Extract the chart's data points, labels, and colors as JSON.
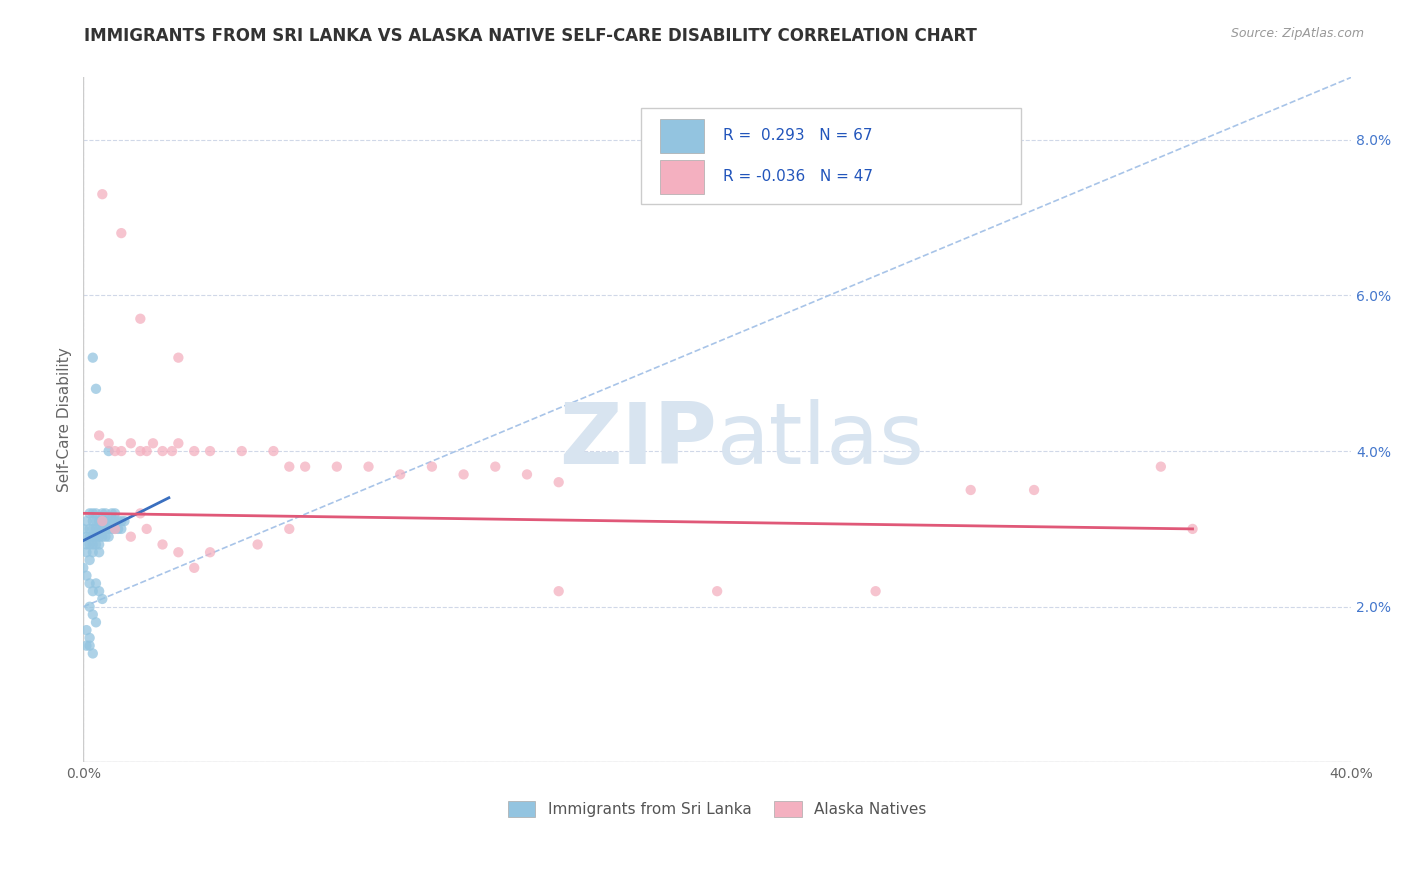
{
  "title": "IMMIGRANTS FROM SRI LANKA VS ALASKA NATIVE SELF-CARE DISABILITY CORRELATION CHART",
  "source": "Source: ZipAtlas.com",
  "ylabel": "Self-Care Disability",
  "xlim": [
    0.0,
    0.4
  ],
  "ylim": [
    0.0,
    0.088
  ],
  "xticks": [
    0.0,
    0.4
  ],
  "yticks": [
    0.0,
    0.02,
    0.04,
    0.06,
    0.08
  ],
  "ytick_labels": [
    "",
    "2.0%",
    "4.0%",
    "6.0%",
    "8.0%"
  ],
  "xtick_labels": [
    "0.0%",
    "40.0%"
  ],
  "legend_blue_label": "Immigrants from Sri Lanka",
  "legend_pink_label": "Alaska Natives",
  "R_blue": 0.293,
  "N_blue": 67,
  "R_pink": -0.036,
  "N_pink": 47,
  "blue_color": "#93c4e0",
  "pink_color": "#f4b0c0",
  "blue_line_color": "#3a6fbf",
  "pink_line_color": "#e05878",
  "diag_line_color": "#a8c4e8",
  "watermark_color": "#d8e4f0",
  "background_color": "#ffffff",
  "grid_color": "#d0d8e8",
  "blue_scatter": [
    [
      0.0,
      0.03
    ],
    [
      0.001,
      0.029
    ],
    [
      0.001,
      0.028
    ],
    [
      0.001,
      0.031
    ],
    [
      0.001,
      0.027
    ],
    [
      0.002,
      0.03
    ],
    [
      0.002,
      0.032
    ],
    [
      0.002,
      0.028
    ],
    [
      0.002,
      0.026
    ],
    [
      0.002,
      0.029
    ],
    [
      0.003,
      0.031
    ],
    [
      0.003,
      0.029
    ],
    [
      0.003,
      0.028
    ],
    [
      0.003,
      0.032
    ],
    [
      0.003,
      0.03
    ],
    [
      0.003,
      0.027
    ],
    [
      0.004,
      0.031
    ],
    [
      0.004,
      0.03
    ],
    [
      0.004,
      0.029
    ],
    [
      0.004,
      0.028
    ],
    [
      0.004,
      0.032
    ],
    [
      0.005,
      0.031
    ],
    [
      0.005,
      0.03
    ],
    [
      0.005,
      0.029
    ],
    [
      0.005,
      0.028
    ],
    [
      0.005,
      0.027
    ],
    [
      0.006,
      0.031
    ],
    [
      0.006,
      0.03
    ],
    [
      0.006,
      0.032
    ],
    [
      0.006,
      0.029
    ],
    [
      0.007,
      0.03
    ],
    [
      0.007,
      0.031
    ],
    [
      0.007,
      0.029
    ],
    [
      0.007,
      0.032
    ],
    [
      0.008,
      0.031
    ],
    [
      0.008,
      0.03
    ],
    [
      0.008,
      0.029
    ],
    [
      0.009,
      0.031
    ],
    [
      0.009,
      0.03
    ],
    [
      0.009,
      0.032
    ],
    [
      0.01,
      0.031
    ],
    [
      0.01,
      0.03
    ],
    [
      0.01,
      0.032
    ],
    [
      0.011,
      0.031
    ],
    [
      0.011,
      0.03
    ],
    [
      0.012,
      0.031
    ],
    [
      0.012,
      0.03
    ],
    [
      0.013,
      0.031
    ],
    [
      0.0,
      0.025
    ],
    [
      0.001,
      0.024
    ],
    [
      0.002,
      0.023
    ],
    [
      0.003,
      0.022
    ],
    [
      0.004,
      0.023
    ],
    [
      0.005,
      0.022
    ],
    [
      0.006,
      0.021
    ],
    [
      0.002,
      0.02
    ],
    [
      0.003,
      0.019
    ],
    [
      0.004,
      0.018
    ],
    [
      0.001,
      0.017
    ],
    [
      0.002,
      0.016
    ],
    [
      0.001,
      0.015
    ],
    [
      0.002,
      0.015
    ],
    [
      0.003,
      0.014
    ],
    [
      0.003,
      0.052
    ],
    [
      0.004,
      0.048
    ],
    [
      0.003,
      0.037
    ],
    [
      0.008,
      0.04
    ]
  ],
  "pink_scatter": [
    [
      0.006,
      0.073
    ],
    [
      0.012,
      0.068
    ],
    [
      0.018,
      0.057
    ],
    [
      0.03,
      0.052
    ],
    [
      0.005,
      0.042
    ],
    [
      0.008,
      0.041
    ],
    [
      0.01,
      0.04
    ],
    [
      0.012,
      0.04
    ],
    [
      0.015,
      0.041
    ],
    [
      0.018,
      0.04
    ],
    [
      0.02,
      0.04
    ],
    [
      0.022,
      0.041
    ],
    [
      0.025,
      0.04
    ],
    [
      0.028,
      0.04
    ],
    [
      0.03,
      0.041
    ],
    [
      0.035,
      0.04
    ],
    [
      0.04,
      0.04
    ],
    [
      0.05,
      0.04
    ],
    [
      0.06,
      0.04
    ],
    [
      0.065,
      0.038
    ],
    [
      0.07,
      0.038
    ],
    [
      0.08,
      0.038
    ],
    [
      0.09,
      0.038
    ],
    [
      0.1,
      0.037
    ],
    [
      0.11,
      0.038
    ],
    [
      0.12,
      0.037
    ],
    [
      0.13,
      0.038
    ],
    [
      0.14,
      0.037
    ],
    [
      0.15,
      0.036
    ],
    [
      0.006,
      0.031
    ],
    [
      0.01,
      0.03
    ],
    [
      0.015,
      0.029
    ],
    [
      0.018,
      0.032
    ],
    [
      0.02,
      0.03
    ],
    [
      0.025,
      0.028
    ],
    [
      0.03,
      0.027
    ],
    [
      0.035,
      0.025
    ],
    [
      0.04,
      0.027
    ],
    [
      0.055,
      0.028
    ],
    [
      0.065,
      0.03
    ],
    [
      0.15,
      0.022
    ],
    [
      0.2,
      0.022
    ],
    [
      0.25,
      0.022
    ],
    [
      0.3,
      0.035
    ],
    [
      0.35,
      0.03
    ],
    [
      0.34,
      0.038
    ],
    [
      0.28,
      0.035
    ]
  ],
  "blue_line_x": [
    0.0,
    0.027
  ],
  "blue_line_y": [
    0.0285,
    0.034
  ],
  "pink_line_x": [
    0.0,
    0.35
  ],
  "pink_line_y": [
    0.032,
    0.03
  ],
  "diag_line_x": [
    0.0,
    0.4
  ],
  "diag_line_y": [
    0.02,
    0.088
  ]
}
